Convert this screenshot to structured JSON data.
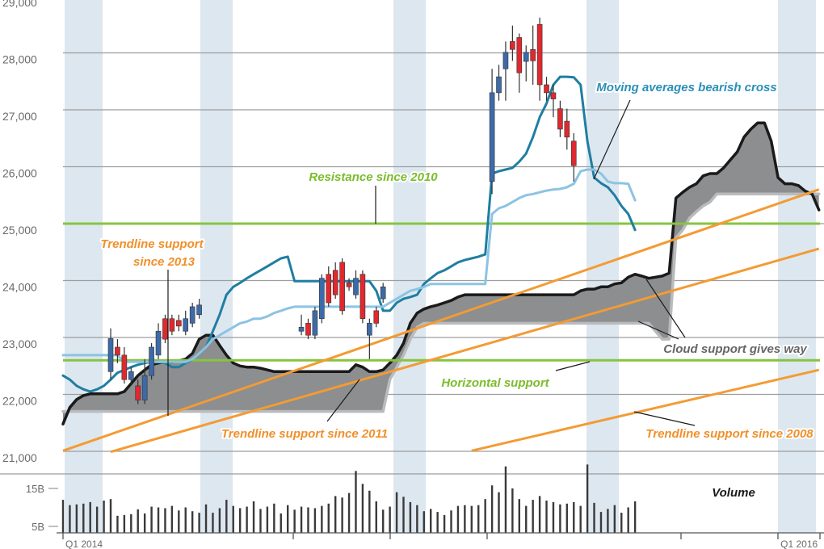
{
  "chart_data": {
    "type": "candlestick",
    "categories": [
      "Q1 2014",
      null,
      null,
      null,
      null,
      null,
      null,
      null,
      null,
      null,
      null,
      null,
      null,
      null,
      null,
      null,
      null,
      null,
      null,
      null,
      null,
      null,
      null,
      null,
      null,
      null,
      null,
      null,
      null,
      null,
      null,
      null,
      null,
      null,
      null,
      null,
      null,
      null,
      null,
      null,
      null,
      null,
      null,
      null,
      null,
      null,
      null,
      null,
      null,
      null,
      null,
      null,
      null,
      null,
      null,
      null,
      null,
      null,
      null,
      null,
      null,
      null,
      null,
      null,
      null,
      null,
      null,
      null,
      null,
      null,
      null,
      null,
      null,
      null,
      null,
      null,
      null,
      null,
      null,
      null,
      null,
      null,
      null,
      null,
      null,
      null,
      null,
      null,
      null,
      null,
      null,
      null,
      null,
      null,
      null,
      null,
      null,
      null,
      null,
      null,
      null,
      null,
      null,
      null,
      null,
      "Q1 2016",
      null,
      null,
      null,
      null,
      null,
      null
    ],
    "ylim": [
      21000,
      29000
    ],
    "yticks": [
      {
        "value": 21000,
        "label": "21,000"
      },
      {
        "value": 22000,
        "label": "22,000"
      },
      {
        "value": 23000,
        "label": "23,000"
      },
      {
        "value": 24000,
        "label": "24,000"
      },
      {
        "value": 25000,
        "label": "25,000"
      },
      {
        "value": 26000,
        "label": "26,000"
      },
      {
        "value": 27000,
        "label": "27,000"
      },
      {
        "value": 28000,
        "label": "28,000"
      },
      {
        "value": 29000,
        "label": "29,000"
      }
    ],
    "grid": true,
    "cloud": {
      "fill": "#8c8e90",
      "span_a_color": "#1a1a1a",
      "span_b_color": "#b9bbbd",
      "span_a": [
        21480,
        21770,
        21910,
        21980,
        22010,
        22010,
        22010,
        22010,
        22010,
        22050,
        22190,
        22330,
        22430,
        22520,
        22550,
        22570,
        22570,
        22590,
        22620,
        22720,
        22970,
        23040,
        23040,
        22860,
        22690,
        22550,
        22500,
        22480,
        22480,
        22460,
        22430,
        22400,
        22400,
        22400,
        22400,
        22400,
        22400,
        22400,
        22400,
        22400,
        22400,
        22400,
        22400,
        22520,
        22480,
        22400,
        22400,
        22430,
        22550,
        22690,
        22900,
        23250,
        23430,
        23500,
        23540,
        23570,
        23610,
        23650,
        23710,
        23750,
        23750,
        23750,
        23750,
        23750,
        23750,
        23750,
        23750,
        23750,
        23750,
        23750,
        23750,
        23750,
        23750,
        23750,
        23750,
        23750,
        23820,
        23850,
        23850,
        23890,
        23890,
        23940,
        23960,
        24060,
        24110,
        24080,
        24040,
        24060,
        24080,
        24130,
        25450,
        25550,
        25640,
        25700,
        25840,
        25880,
        25880,
        25980,
        26120,
        26260,
        26520,
        26660,
        26770,
        26770,
        26450,
        25810,
        25700,
        25700,
        25670,
        25570,
        25520,
        25240
      ],
      "span_b": [
        21700,
        21700,
        21700,
        21700,
        21700,
        21700,
        21700,
        21700,
        21700,
        21700,
        21700,
        21700,
        21700,
        21700,
        21700,
        21700,
        21700,
        21700,
        21700,
        21700,
        21700,
        21700,
        21700,
        21700,
        21700,
        21700,
        21700,
        21700,
        21700,
        21700,
        21700,
        21700,
        21700,
        21700,
        21700,
        21700,
        21700,
        21700,
        21700,
        21700,
        21700,
        21700,
        21700,
        21700,
        21700,
        21700,
        21700,
        21700,
        22260,
        22480,
        22690,
        22970,
        23180,
        23250,
        23250,
        23250,
        23250,
        23250,
        23250,
        23250,
        23250,
        23250,
        23250,
        23250,
        23250,
        23250,
        23250,
        23250,
        23250,
        23250,
        23250,
        23250,
        23250,
        23250,
        23250,
        23250,
        23250,
        23250,
        23250,
        23250,
        23250,
        23250,
        23250,
        23250,
        23250,
        23250,
        23250,
        23110,
        22970,
        22970,
        24750,
        24890,
        25100,
        25210,
        25310,
        25380,
        25520,
        25520,
        25520,
        25520,
        25520,
        25520,
        25520,
        25520,
        25520,
        25520,
        25520,
        25520,
        25520,
        25520,
        25520,
        25520
      ]
    },
    "moving_averages": [
      {
        "color": "#1f7ea1",
        "values": [
          22330,
          22260,
          22150,
          22090,
          22050,
          22090,
          22150,
          22260,
          22380,
          22430,
          22480,
          22520,
          22550,
          22570,
          22570,
          22550,
          22480,
          22480,
          22550,
          22620,
          22720,
          22830,
          23110,
          23400,
          23750,
          23890,
          23960,
          24040,
          24110,
          24180,
          24250,
          24320,
          24390,
          24420,
          23990,
          23990,
          23990,
          23990,
          23990,
          23990,
          23990,
          23990,
          23990,
          23990,
          23990,
          23990,
          23820,
          23470,
          23470,
          23610,
          23680,
          23710,
          23750,
          23940,
          24040,
          24130,
          24180,
          24250,
          24320,
          24360,
          24390,
          24420,
          24460,
          25880,
          25920,
          25950,
          25980,
          26090,
          26230,
          26520,
          26870,
          27110,
          27440,
          27580,
          27580,
          27570,
          27440,
          26450,
          25810,
          25710,
          25640,
          25500,
          25310,
          25170,
          24890,
          null,
          null,
          null,
          null,
          null,
          null,
          null,
          null,
          null,
          null,
          null,
          null,
          null,
          null,
          null,
          null,
          null,
          null,
          null,
          null,
          null,
          null,
          null,
          null,
          null,
          null,
          null
        ]
      },
      {
        "color": "#8cc3e3",
        "values": [
          22690,
          22690,
          22690,
          22690,
          22690,
          22690,
          22690,
          22690,
          22690,
          22570,
          22570,
          22570,
          22570,
          22570,
          22570,
          22570,
          22570,
          22570,
          22570,
          22620,
          22720,
          22830,
          22970,
          23040,
          23110,
          23180,
          23250,
          23280,
          23330,
          23330,
          23370,
          23430,
          23470,
          23510,
          23540,
          23540,
          23540,
          23540,
          23540,
          23540,
          23540,
          23540,
          23540,
          23540,
          23540,
          23540,
          23540,
          23540,
          23610,
          23680,
          23750,
          23820,
          23850,
          23890,
          23940,
          23940,
          23940,
          23940,
          23940,
          23940,
          23940,
          23940,
          23940,
          25170,
          25270,
          25310,
          25380,
          25450,
          25500,
          25520,
          25550,
          25580,
          25600,
          25610,
          25640,
          25700,
          25920,
          25950,
          25950,
          25880,
          25740,
          25710,
          25710,
          25700,
          25410,
          null,
          null,
          null,
          null,
          null,
          null,
          null,
          null,
          null,
          null,
          null,
          null,
          null,
          null,
          null,
          null,
          null,
          null,
          null,
          null,
          null,
          null,
          null,
          null,
          null,
          null,
          null
        ]
      }
    ],
    "candles": {
      "up_color": "#3d6aa8",
      "down_color": "#e0282e",
      "open": [
        null,
        null,
        null,
        null,
        null,
        null,
        null,
        22400,
        22830,
        22690,
        22260,
        22150,
        21900,
        22330,
        22690,
        23330,
        23330,
        23300,
        23110,
        23250,
        23400,
        null,
        null,
        null,
        null,
        null,
        null,
        null,
        null,
        null,
        null,
        null,
        null,
        null,
        null,
        23110,
        23250,
        23040,
        23330,
        24110,
        24180,
        24320,
        23960,
        23750,
        24110,
        23040,
        23470,
        23680,
        null,
        null,
        null,
        null,
        null,
        null,
        null,
        null,
        null,
        null,
        null,
        null,
        null,
        null,
        null,
        25740,
        27300,
        27720,
        28200,
        28270,
        27850,
        28060,
        28500,
        27440,
        27300,
        27020,
        26800,
        26450,
        null,
        null,
        null,
        null,
        null,
        null,
        null,
        null,
        null,
        null,
        null,
        null,
        null,
        null,
        null,
        null,
        null,
        null,
        null,
        null,
        null,
        null,
        null,
        null,
        null,
        null,
        null,
        null,
        null,
        null,
        null,
        null,
        null,
        null,
        null,
        null
      ],
      "high": [
        null,
        null,
        null,
        null,
        null,
        null,
        null,
        23160,
        22970,
        22830,
        22480,
        22260,
        22620,
        22900,
        23250,
        23400,
        23400,
        23400,
        23470,
        23610,
        23680,
        null,
        null,
        null,
        null,
        null,
        null,
        null,
        null,
        null,
        null,
        null,
        null,
        null,
        null,
        23400,
        23330,
        23540,
        24110,
        24250,
        24320,
        24390,
        24040,
        24180,
        24180,
        23330,
        23540,
        23960,
        null,
        null,
        null,
        null,
        null,
        null,
        null,
        null,
        null,
        null,
        null,
        null,
        null,
        null,
        null,
        27720,
        27790,
        28200,
        28480,
        28340,
        28130,
        28480,
        28620,
        27580,
        27440,
        27160,
        27020,
        26590,
        null,
        null,
        null,
        null,
        null,
        null,
        null,
        null,
        null,
        null,
        null,
        null,
        null,
        null,
        null,
        null,
        null,
        null,
        null,
        null,
        null,
        null,
        null,
        null,
        null,
        null,
        null,
        null,
        null,
        null,
        null,
        null,
        null,
        null,
        null,
        null
      ],
      "low": [
        null,
        null,
        null,
        null,
        null,
        null,
        null,
        22260,
        22550,
        22190,
        22190,
        21830,
        21830,
        22260,
        22620,
        22900,
        23040,
        23110,
        23040,
        23180,
        23330,
        null,
        null,
        null,
        null,
        null,
        null,
        null,
        null,
        null,
        null,
        null,
        null,
        null,
        null,
        23040,
        22970,
        22970,
        23250,
        23540,
        23680,
        23400,
        23820,
        23680,
        23250,
        22620,
        23180,
        23610,
        null,
        null,
        null,
        null,
        null,
        null,
        null,
        null,
        null,
        null,
        null,
        null,
        null,
        null,
        null,
        25520,
        27160,
        27160,
        27860,
        27300,
        27500,
        27440,
        27160,
        27160,
        26870,
        26520,
        26300,
        25740,
        null,
        null,
        null,
        null,
        null,
        null,
        null,
        null,
        null,
        null,
        null,
        null,
        null,
        null,
        null,
        null,
        null,
        null,
        null,
        null,
        null,
        null,
        null,
        null,
        null,
        null,
        null,
        null,
        null,
        null,
        null,
        null,
        null,
        null,
        null,
        null
      ],
      "close": [
        null,
        null,
        null,
        null,
        null,
        null,
        null,
        22980,
        22690,
        22260,
        22400,
        21900,
        22330,
        22830,
        23110,
        22970,
        23110,
        23200,
        23330,
        23540,
        23570,
        null,
        null,
        null,
        null,
        null,
        null,
        null,
        null,
        null,
        null,
        null,
        null,
        null,
        null,
        23180,
        23040,
        23470,
        24040,
        23610,
        23750,
        23470,
        23890,
        24040,
        23330,
        23250,
        23250,
        23890,
        null,
        null,
        null,
        null,
        null,
        null,
        null,
        null,
        null,
        null,
        null,
        null,
        null,
        null,
        null,
        27300,
        27580,
        28010,
        28060,
        27650,
        28010,
        27860,
        27440,
        27300,
        27190,
        26660,
        26520,
        26020,
        null,
        null,
        null,
        null,
        null,
        null,
        null,
        null,
        null,
        null,
        null,
        null,
        null,
        null,
        null,
        null,
        null,
        null,
        null,
        null,
        null,
        null,
        null,
        null,
        null,
        null,
        null,
        null,
        null,
        null,
        null,
        null,
        null,
        null,
        null,
        null
      ]
    },
    "hlines": [
      {
        "value": 25000,
        "color": "#86c440"
      },
      {
        "value": 22600,
        "color": "#86c440"
      }
    ],
    "trendlines": [
      {
        "x": [
          0,
          111
        ],
        "values": [
          21010,
          25600
        ],
        "color": "#f39b34"
      },
      {
        "x": [
          7,
          111
        ],
        "values": [
          20990,
          24560
        ],
        "color": "#f39b34"
      },
      {
        "x": [
          60,
          111
        ],
        "values": [
          21010,
          22430
        ],
        "color": "#f39b34"
      }
    ],
    "annotations": [
      "Moving averages bearish cross",
      "Resistance since 2010",
      "Trendline support",
      "since 2013",
      "Cloud support gives way",
      "Horizontal support",
      "Trendline support since 2011",
      "Trendline support since 2008"
    ],
    "volume": {
      "name": "Volume",
      "color": "#3a3a3a",
      "ylim": [
        3.3,
        23.5
      ],
      "yticks": [
        {
          "value": 5,
          "label": "5B"
        },
        {
          "value": 15,
          "label": "15B"
        }
      ],
      "values": [
        12,
        10.6,
        10.8,
        11,
        11.4,
        10.2,
        11.8,
        12.2,
        7.8,
        8,
        8.2,
        9.5,
        8.4,
        10.2,
        10,
        9.8,
        10.4,
        9.2,
        10,
        9,
        8.6,
        10.8,
        8.6,
        9.8,
        12,
        10.4,
        9.8,
        10.2,
        11.6,
        9.6,
        10.2,
        11,
        8.4,
        10.6,
        9.4,
        10.2,
        10,
        9.8,
        10.4,
        11,
        13,
        12.6,
        13.8,
        19.6,
        16.2,
        14.4,
        11.6,
        9.4,
        10.2,
        14,
        12.8,
        11.4,
        10.6,
        9,
        9.6,
        8.8,
        8,
        9.2,
        10.4,
        10.6,
        10.4,
        10.6,
        12.2,
        15.8,
        14,
        20.8,
        15,
        12.2,
        10.4,
        12,
        13,
        11.8,
        11.4,
        10.8,
        11,
        11.4,
        10.4,
        21.3,
        11.2,
        8.8,
        9.6,
        10.6,
        8.6,
        10,
        11.6,
        null,
        null,
        null,
        null,
        null,
        null,
        null,
        null,
        null,
        null,
        null,
        null,
        null,
        null,
        null,
        null,
        null,
        null,
        null,
        null,
        null,
        null,
        null,
        null,
        null,
        null,
        null
      ]
    }
  }
}
